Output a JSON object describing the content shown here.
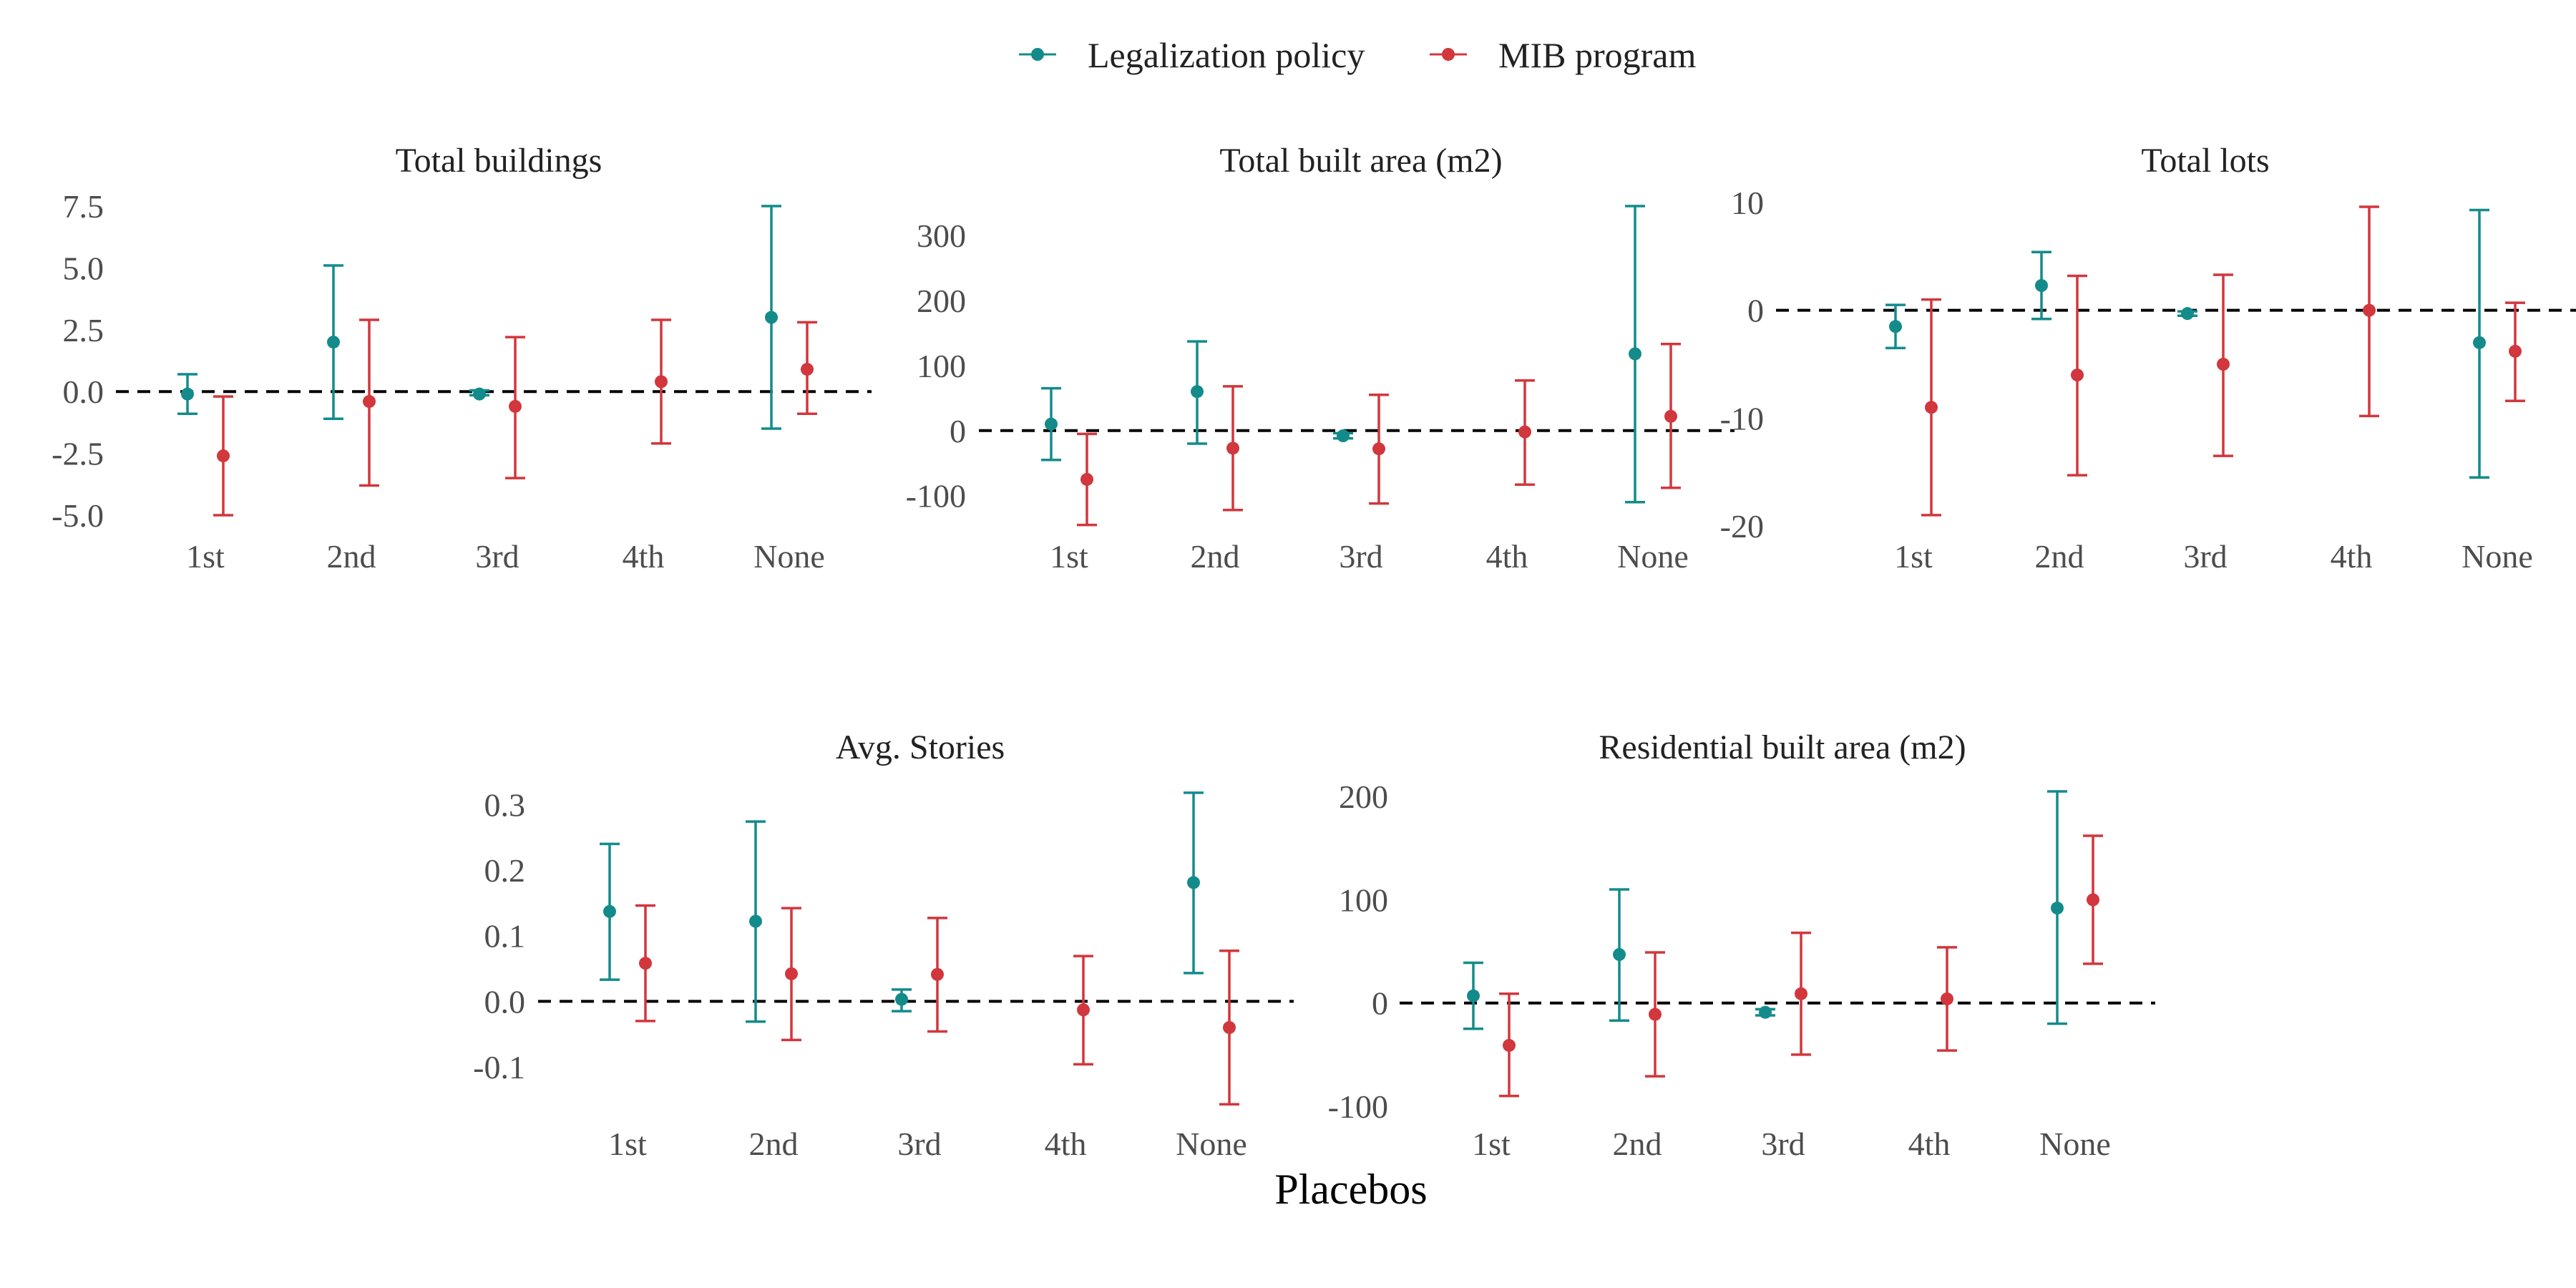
{
  "colors": {
    "legalization": "#138b8b",
    "mib": "#d1373d",
    "zero_line": "#000000"
  },
  "legend": [
    {
      "key": "legalization",
      "label": "Legalization policy"
    },
    {
      "key": "mib",
      "label": "MIB program"
    }
  ],
  "x_axis_label": "Placebos",
  "chart_data": [
    {
      "type": "errorbar",
      "title": "Total buildings",
      "categories": [
        "1st",
        "2nd",
        "3rd",
        "4th",
        "None"
      ],
      "ylim": [
        -5.0,
        7.5
      ],
      "yticks": [
        "7.5",
        "5.0",
        "2.5",
        "0.0",
        "-2.5",
        "-5.0"
      ],
      "ytick_values": [
        7.5,
        5.0,
        2.5,
        0.0,
        -2.5,
        -5.0
      ],
      "grid": false,
      "reference_line": 0,
      "series": [
        {
          "name": "Legalization policy",
          "key": "legalization",
          "points": [
            {
              "x": "1st",
              "est": -0.1,
              "lo": -0.9,
              "hi": 0.7
            },
            {
              "x": "2nd",
              "est": 2.0,
              "lo": -1.1,
              "hi": 5.1
            },
            {
              "x": "3rd",
              "est": -0.1,
              "lo": -0.15,
              "hi": 0.05
            },
            {
              "x": "None",
              "est": 3.0,
              "lo": -1.5,
              "hi": 7.5
            }
          ]
        },
        {
          "name": "MIB program",
          "key": "mib",
          "points": [
            {
              "x": "1st",
              "est": -2.6,
              "lo": -5.0,
              "hi": -0.2
            },
            {
              "x": "2nd",
              "est": -0.4,
              "lo": -3.8,
              "hi": 2.9
            },
            {
              "x": "3rd",
              "est": -0.6,
              "lo": -3.5,
              "hi": 2.2
            },
            {
              "x": "4th",
              "est": 0.4,
              "lo": -2.1,
              "hi": 2.9
            },
            {
              "x": "None",
              "est": 0.9,
              "lo": -0.9,
              "hi": 2.8
            }
          ]
        }
      ]
    },
    {
      "type": "errorbar",
      "title": "Total built area (m2)",
      "categories": [
        "1st",
        "2nd",
        "3rd",
        "4th",
        "None"
      ],
      "ylim": [
        -130,
        345
      ],
      "yticks": [
        "300",
        "200",
        "100",
        "0",
        "-100"
      ],
      "ytick_values": [
        300,
        200,
        100,
        0,
        -100
      ],
      "grid": false,
      "reference_line": 0,
      "series": [
        {
          "name": "Legalization policy",
          "key": "legalization",
          "points": [
            {
              "x": "1st",
              "est": 10,
              "lo": -45,
              "hi": 65
            },
            {
              "x": "2nd",
              "est": 60,
              "lo": -20,
              "hi": 137
            },
            {
              "x": "3rd",
              "est": -8,
              "lo": -12,
              "hi": -4
            },
            {
              "x": "None",
              "est": 118,
              "lo": -110,
              "hi": 345
            }
          ]
        },
        {
          "name": "MIB program",
          "key": "mib",
          "points": [
            {
              "x": "1st",
              "est": -75,
              "lo": -145,
              "hi": -5
            },
            {
              "x": "2nd",
              "est": -27,
              "lo": -122,
              "hi": 68
            },
            {
              "x": "3rd",
              "est": -28,
              "lo": -112,
              "hi": 55
            },
            {
              "x": "4th",
              "est": -2,
              "lo": -83,
              "hi": 77
            },
            {
              "x": "None",
              "est": 22,
              "lo": -88,
              "hi": 133
            }
          ]
        }
      ]
    },
    {
      "type": "errorbar",
      "title": "Total lots",
      "categories": [
        "1st",
        "2nd",
        "3rd",
        "4th",
        "None"
      ],
      "ylim": [
        -20,
        10
      ],
      "yticks": [
        "10",
        "0",
        "-10",
        "-20"
      ],
      "ytick_values": [
        10,
        0,
        -10,
        -20
      ],
      "grid": false,
      "reference_line": 0,
      "series": [
        {
          "name": "Legalization policy",
          "key": "legalization",
          "points": [
            {
              "x": "1st",
              "est": -1.5,
              "lo": -3.5,
              "hi": 0.5
            },
            {
              "x": "2nd",
              "est": 2.3,
              "lo": -0.8,
              "hi": 5.4
            },
            {
              "x": "3rd",
              "est": -0.3,
              "lo": -0.5,
              "hi": -0.1
            },
            {
              "x": "None",
              "est": -3.0,
              "lo": -15.5,
              "hi": 9.3
            }
          ]
        },
        {
          "name": "MIB program",
          "key": "mib",
          "points": [
            {
              "x": "1st",
              "est": -9.0,
              "lo": -19.0,
              "hi": 1.0
            },
            {
              "x": "2nd",
              "est": -6.0,
              "lo": -15.3,
              "hi": 3.2
            },
            {
              "x": "3rd",
              "est": -5.0,
              "lo": -13.5,
              "hi": 3.3
            },
            {
              "x": "4th",
              "est": 0.0,
              "lo": -9.8,
              "hi": 9.6
            },
            {
              "x": "None",
              "est": -3.8,
              "lo": -8.4,
              "hi": 0.7
            }
          ]
        }
      ]
    },
    {
      "type": "errorbar",
      "title": "Avg. Stories",
      "categories": [
        "1st",
        "2nd",
        "3rd",
        "4th",
        "None"
      ],
      "ylim": [
        -0.16,
        0.32
      ],
      "yticks": [
        "0.3",
        "0.2",
        "0.1",
        "0.0",
        "-0.1"
      ],
      "ytick_values": [
        0.3,
        0.2,
        0.1,
        0.0,
        -0.1
      ],
      "grid": false,
      "reference_line": 0,
      "series": [
        {
          "name": "Legalization policy",
          "key": "legalization",
          "points": [
            {
              "x": "1st",
              "est": 0.137,
              "lo": 0.033,
              "hi": 0.24
            },
            {
              "x": "2nd",
              "est": 0.122,
              "lo": -0.031,
              "hi": 0.274
            },
            {
              "x": "3rd",
              "est": 0.003,
              "lo": -0.015,
              "hi": 0.018
            },
            {
              "x": "None",
              "est": 0.181,
              "lo": 0.043,
              "hi": 0.318
            }
          ]
        },
        {
          "name": "MIB program",
          "key": "mib",
          "points": [
            {
              "x": "1st",
              "est": 0.058,
              "lo": -0.03,
              "hi": 0.146
            },
            {
              "x": "2nd",
              "est": 0.042,
              "lo": -0.059,
              "hi": 0.142
            },
            {
              "x": "3rd",
              "est": 0.041,
              "lo": -0.046,
              "hi": 0.127
            },
            {
              "x": "4th",
              "est": -0.013,
              "lo": -0.096,
              "hi": 0.069
            },
            {
              "x": "None",
              "est": -0.04,
              "lo": -0.157,
              "hi": 0.077
            }
          ]
        }
      ]
    },
    {
      "type": "errorbar",
      "title": "Residential built area (m2)",
      "categories": [
        "1st",
        "2nd",
        "3rd",
        "4th",
        "None"
      ],
      "ylim": [
        -100,
        205
      ],
      "yticks": [
        "200",
        "100",
        "0",
        "-100"
      ],
      "ytick_values": [
        200,
        100,
        0,
        -100
      ],
      "grid": false,
      "reference_line": 0,
      "series": [
        {
          "name": "Legalization policy",
          "key": "legalization",
          "points": [
            {
              "x": "1st",
              "est": 7,
              "lo": -25,
              "hi": 39
            },
            {
              "x": "2nd",
              "est": 47,
              "lo": -17,
              "hi": 110
            },
            {
              "x": "3rd",
              "est": -9,
              "lo": -12,
              "hi": -6
            },
            {
              "x": "None",
              "est": 92,
              "lo": -20,
              "hi": 205
            }
          ]
        },
        {
          "name": "MIB program",
          "key": "mib",
          "points": [
            {
              "x": "1st",
              "est": -41,
              "lo": -90,
              "hi": 9
            },
            {
              "x": "2nd",
              "est": -11,
              "lo": -71,
              "hi": 49
            },
            {
              "x": "3rd",
              "est": 9,
              "lo": -50,
              "hi": 68
            },
            {
              "x": "4th",
              "est": 4,
              "lo": -46,
              "hi": 54
            },
            {
              "x": "None",
              "est": 100,
              "lo": 38,
              "hi": 162
            }
          ]
        }
      ]
    }
  ]
}
